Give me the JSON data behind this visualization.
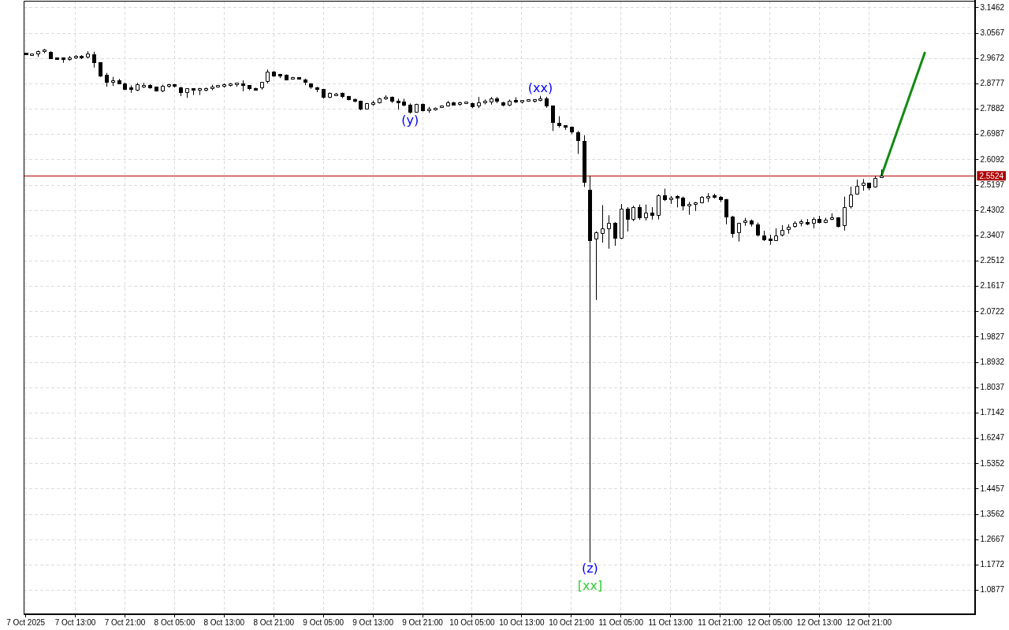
{
  "chart_data": {
    "type": "candlestick",
    "series": [
      {
        "type": "candlestick",
        "color": "#000000",
        "x": [
          "2025-10-07T05:00",
          "2025-10-07T06:00",
          "2025-10-07T07:00",
          "2025-10-07T08:00",
          "2025-10-07T09:00",
          "2025-10-07T10:00",
          "2025-10-07T11:00",
          "2025-10-07T12:00",
          "2025-10-07T13:00",
          "2025-10-07T14:00",
          "2025-10-07T15:00",
          "2025-10-07T16:00",
          "2025-10-07T17:00",
          "2025-10-07T18:00",
          "2025-10-07T19:00",
          "2025-10-07T20:00",
          "2025-10-07T21:00",
          "2025-10-07T22:00",
          "2025-10-07T23:00",
          "2025-10-08T00:00",
          "2025-10-08T01:00",
          "2025-10-08T02:00",
          "2025-10-08T03:00",
          "2025-10-08T04:00",
          "2025-10-08T05:00",
          "2025-10-08T06:00",
          "2025-10-08T07:00",
          "2025-10-08T08:00",
          "2025-10-08T09:00",
          "2025-10-08T10:00",
          "2025-10-08T11:00",
          "2025-10-08T12:00",
          "2025-10-08T13:00",
          "2025-10-08T14:00",
          "2025-10-08T15:00",
          "2025-10-08T16:00",
          "2025-10-08T17:00",
          "2025-10-08T18:00",
          "2025-10-08T19:00",
          "2025-10-08T20:00",
          "2025-10-08T21:00",
          "2025-10-08T22:00",
          "2025-10-08T23:00",
          "2025-10-09T00:00",
          "2025-10-09T01:00",
          "2025-10-09T02:00",
          "2025-10-09T03:00",
          "2025-10-09T04:00",
          "2025-10-09T05:00",
          "2025-10-09T06:00",
          "2025-10-09T07:00",
          "2025-10-09T08:00",
          "2025-10-09T09:00",
          "2025-10-09T10:00",
          "2025-10-09T11:00",
          "2025-10-09T12:00",
          "2025-10-09T13:00",
          "2025-10-09T14:00",
          "2025-10-09T15:00",
          "2025-10-09T16:00",
          "2025-10-09T17:00",
          "2025-10-09T18:00",
          "2025-10-09T19:00",
          "2025-10-09T20:00",
          "2025-10-09T21:00",
          "2025-10-09T22:00",
          "2025-10-09T23:00",
          "2025-10-10T00:00",
          "2025-10-10T01:00",
          "2025-10-10T02:00",
          "2025-10-10T03:00",
          "2025-10-10T04:00",
          "2025-10-10T05:00",
          "2025-10-10T06:00",
          "2025-10-10T07:00",
          "2025-10-10T08:00",
          "2025-10-10T09:00",
          "2025-10-10T10:00",
          "2025-10-10T11:00",
          "2025-10-10T12:00",
          "2025-10-10T13:00",
          "2025-10-10T14:00",
          "2025-10-10T15:00",
          "2025-10-10T16:00",
          "2025-10-10T17:00",
          "2025-10-10T18:00",
          "2025-10-10T19:00",
          "2025-10-10T20:00",
          "2025-10-10T21:00",
          "2025-10-10T22:00",
          "2025-10-10T23:00",
          "2025-10-11T00:00",
          "2025-10-11T01:00",
          "2025-10-11T02:00",
          "2025-10-11T03:00",
          "2025-10-11T04:00",
          "2025-10-11T05:00",
          "2025-10-11T06:00",
          "2025-10-11T07:00",
          "2025-10-11T08:00",
          "2025-10-11T09:00",
          "2025-10-11T10:00",
          "2025-10-11T11:00",
          "2025-10-11T12:00",
          "2025-10-11T13:00",
          "2025-10-11T14:00",
          "2025-10-11T15:00",
          "2025-10-11T16:00",
          "2025-10-11T17:00",
          "2025-10-11T18:00",
          "2025-10-11T19:00",
          "2025-10-11T20:00",
          "2025-10-11T21:00",
          "2025-10-11T22:00",
          "2025-10-11T23:00",
          "2025-10-12T00:00",
          "2025-10-12T01:00",
          "2025-10-12T02:00",
          "2025-10-12T03:00",
          "2025-10-12T04:00",
          "2025-10-12T05:00",
          "2025-10-12T06:00",
          "2025-10-12T07:00",
          "2025-10-12T08:00",
          "2025-10-12T09:00",
          "2025-10-12T10:00",
          "2025-10-12T11:00",
          "2025-10-12T12:00",
          "2025-10-12T13:00",
          "2025-10-12T14:00",
          "2025-10-12T15:00",
          "2025-10-12T16:00",
          "2025-10-12T17:00",
          "2025-10-12T18:00",
          "2025-10-12T19:00",
          "2025-10-12T20:00",
          "2025-10-12T21:00",
          "2025-10-12T22:00",
          "2025-10-12T23:00"
        ],
        "ohlc": [
          [
            2.984,
            2.987,
            2.981,
            2.984
          ],
          [
            2.981,
            2.984,
            2.978,
            2.982
          ],
          [
            2.983,
            2.995,
            2.973,
            2.992
          ],
          [
            2.993,
            3.001,
            2.986,
            2.994
          ],
          [
            2.991,
            2.993,
            2.965,
            2.966
          ],
          [
            2.968,
            2.971,
            2.962,
            2.967
          ],
          [
            2.97,
            2.971,
            2.952,
            2.963
          ],
          [
            2.963,
            2.976,
            2.959,
            2.971
          ],
          [
            2.968,
            2.979,
            2.965,
            2.976
          ],
          [
            2.976,
            2.979,
            2.965,
            2.968
          ],
          [
            2.97,
            2.993,
            2.967,
            2.985
          ],
          [
            2.983,
            2.991,
            2.935,
            2.951
          ],
          [
            2.953,
            2.953,
            2.902,
            2.905
          ],
          [
            2.909,
            2.916,
            2.867,
            2.882
          ],
          [
            2.883,
            2.902,
            2.87,
            2.889
          ],
          [
            2.891,
            2.895,
            2.876,
            2.877
          ],
          [
            2.879,
            2.882,
            2.856,
            2.857
          ],
          [
            2.863,
            2.872,
            2.846,
            2.856
          ],
          [
            2.853,
            2.881,
            2.852,
            2.876
          ],
          [
            2.865,
            2.881,
            2.863,
            2.873
          ],
          [
            2.873,
            2.877,
            2.86,
            2.862
          ],
          [
            2.867,
            2.868,
            2.85,
            2.851
          ],
          [
            2.851,
            2.874,
            2.848,
            2.87
          ],
          [
            2.871,
            2.877,
            2.864,
            2.872
          ],
          [
            2.872,
            2.877,
            2.864,
            2.87
          ],
          [
            2.865,
            2.867,
            2.834,
            2.846
          ],
          [
            2.846,
            2.861,
            2.828,
            2.861
          ],
          [
            2.86,
            2.86,
            2.838,
            2.854
          ],
          [
            2.855,
            2.863,
            2.838,
            2.862
          ],
          [
            2.857,
            2.864,
            2.851,
            2.86
          ],
          [
            2.86,
            2.874,
            2.855,
            2.869
          ],
          [
            2.867,
            2.872,
            2.864,
            2.869
          ],
          [
            2.868,
            2.879,
            2.864,
            2.877
          ],
          [
            2.875,
            2.88,
            2.868,
            2.876
          ],
          [
            2.876,
            2.881,
            2.867,
            2.877
          ],
          [
            2.877,
            2.89,
            2.851,
            2.874
          ],
          [
            2.872,
            2.872,
            2.855,
            2.859
          ],
          [
            2.861,
            2.864,
            2.855,
            2.857
          ],
          [
            2.862,
            2.883,
            2.857,
            2.883
          ],
          [
            2.883,
            2.928,
            2.879,
            2.921
          ],
          [
            2.92,
            2.923,
            2.902,
            2.904
          ],
          [
            2.91,
            2.913,
            2.898,
            2.904
          ],
          [
            2.909,
            2.911,
            2.891,
            2.891
          ],
          [
            2.896,
            2.902,
            2.893,
            2.897
          ],
          [
            2.896,
            2.9,
            2.895,
            2.896
          ],
          [
            2.894,
            2.896,
            2.873,
            2.881
          ],
          [
            2.878,
            2.88,
            2.86,
            2.865
          ],
          [
            2.866,
            2.867,
            2.848,
            2.857
          ],
          [
            2.859,
            2.86,
            2.825,
            2.828
          ],
          [
            2.829,
            2.847,
            2.827,
            2.844
          ],
          [
            2.839,
            2.845,
            2.834,
            2.84
          ],
          [
            2.845,
            2.847,
            2.827,
            2.831
          ],
          [
            2.834,
            2.835,
            2.819,
            2.821
          ],
          [
            2.823,
            2.826,
            2.812,
            2.816
          ],
          [
            2.817,
            2.818,
            2.784,
            2.786
          ],
          [
            2.788,
            2.81,
            2.787,
            2.809
          ],
          [
            2.808,
            2.818,
            2.8,
            2.809
          ],
          [
            2.809,
            2.828,
            2.808,
            2.825
          ],
          [
            2.823,
            2.837,
            2.821,
            2.831
          ],
          [
            2.831,
            2.833,
            2.81,
            2.814
          ],
          [
            2.817,
            2.825,
            2.786,
            2.811
          ],
          [
            2.814,
            2.825,
            2.798,
            2.801
          ],
          [
            2.805,
            2.808,
            2.772,
            2.775
          ],
          [
            2.777,
            2.807,
            2.776,
            2.806
          ],
          [
            2.806,
            2.808,
            2.78,
            2.781
          ],
          [
            2.781,
            2.796,
            2.775,
            2.789
          ],
          [
            2.788,
            2.794,
            2.783,
            2.79
          ],
          [
            2.795,
            2.801,
            2.792,
            2.797
          ],
          [
            2.797,
            2.817,
            2.797,
            2.813
          ],
          [
            2.813,
            2.814,
            2.801,
            2.802
          ],
          [
            2.803,
            2.814,
            2.8,
            2.811
          ],
          [
            2.809,
            2.814,
            2.806,
            2.81
          ],
          [
            2.81,
            2.811,
            2.792,
            2.795
          ],
          [
            2.797,
            2.831,
            2.792,
            2.813
          ],
          [
            2.811,
            2.822,
            2.805,
            2.815
          ],
          [
            2.812,
            2.831,
            2.804,
            2.825
          ],
          [
            2.826,
            2.831,
            2.809,
            2.814
          ],
          [
            2.813,
            2.814,
            2.798,
            2.801
          ],
          [
            2.8,
            2.822,
            2.799,
            2.818
          ],
          [
            2.819,
            2.83,
            2.81,
            2.812
          ],
          [
            2.814,
            2.82,
            2.808,
            2.819
          ],
          [
            2.818,
            2.821,
            2.816,
            2.819
          ],
          [
            2.818,
            2.822,
            2.811,
            2.82
          ],
          [
            2.819,
            2.835,
            2.816,
            2.825
          ],
          [
            2.825,
            2.832,
            2.793,
            2.799
          ],
          [
            2.8,
            2.8,
            2.711,
            2.739
          ],
          [
            2.741,
            2.763,
            2.723,
            2.728
          ],
          [
            2.73,
            2.731,
            2.715,
            2.723
          ],
          [
            2.725,
            2.727,
            2.7,
            2.705
          ],
          [
            2.707,
            2.711,
            2.63,
            2.676
          ],
          [
            2.677,
            2.696,
            2.513,
            2.527
          ],
          [
            2.504,
            2.553,
            1.186,
            2.323
          ],
          [
            2.327,
            2.356,
            2.114,
            2.353
          ],
          [
            2.348,
            2.449,
            2.316,
            2.367
          ],
          [
            2.365,
            2.413,
            2.295,
            2.386
          ],
          [
            2.386,
            2.389,
            2.305,
            2.331
          ],
          [
            2.331,
            2.453,
            2.329,
            2.436
          ],
          [
            2.436,
            2.442,
            2.356,
            2.397
          ],
          [
            2.397,
            2.447,
            2.392,
            2.442
          ],
          [
            2.442,
            2.451,
            2.397,
            2.402
          ],
          [
            2.402,
            2.451,
            2.395,
            2.423
          ],
          [
            2.423,
            2.442,
            2.398,
            2.41
          ],
          [
            2.411,
            2.487,
            2.398,
            2.484
          ],
          [
            2.483,
            2.507,
            2.463,
            2.467
          ],
          [
            2.467,
            2.481,
            2.453,
            2.476
          ],
          [
            2.48,
            2.484,
            2.441,
            2.476
          ],
          [
            2.476,
            2.479,
            2.43,
            2.444
          ],
          [
            2.444,
            2.46,
            2.415,
            2.451
          ],
          [
            2.449,
            2.46,
            2.428,
            2.458
          ],
          [
            2.457,
            2.481,
            2.455,
            2.479
          ],
          [
            2.476,
            2.491,
            2.46,
            2.479
          ],
          [
            2.479,
            2.489,
            2.472,
            2.478
          ],
          [
            2.479,
            2.481,
            2.46,
            2.467
          ],
          [
            2.47,
            2.471,
            2.381,
            2.407
          ],
          [
            2.409,
            2.411,
            2.334,
            2.348
          ],
          [
            2.351,
            2.386,
            2.32,
            2.386
          ],
          [
            2.385,
            2.404,
            2.376,
            2.395
          ],
          [
            2.395,
            2.398,
            2.373,
            2.38
          ],
          [
            2.381,
            2.387,
            2.338,
            2.341
          ],
          [
            2.342,
            2.358,
            2.322,
            2.325
          ],
          [
            2.328,
            2.344,
            2.309,
            2.324
          ],
          [
            2.323,
            2.367,
            2.322,
            2.341
          ],
          [
            2.341,
            2.378,
            2.338,
            2.361
          ],
          [
            2.361,
            2.381,
            2.348,
            2.372
          ],
          [
            2.371,
            2.392,
            2.369,
            2.387
          ],
          [
            2.388,
            2.398,
            2.374,
            2.389
          ],
          [
            2.389,
            2.4,
            2.378,
            2.381
          ],
          [
            2.383,
            2.406,
            2.367,
            2.4
          ],
          [
            2.4,
            2.411,
            2.384,
            2.387
          ],
          [
            2.387,
            2.404,
            2.385,
            2.396
          ],
          [
            2.396,
            2.42,
            2.396,
            2.406
          ],
          [
            2.406,
            2.406,
            2.37,
            2.373
          ],
          [
            2.374,
            2.479,
            2.359,
            2.441
          ],
          [
            2.441,
            2.514,
            2.437,
            2.486
          ],
          [
            2.486,
            2.539,
            2.486,
            2.516
          ],
          [
            2.518,
            2.541,
            2.5,
            2.528
          ],
          [
            2.528,
            2.528,
            2.502,
            2.51
          ],
          [
            2.511,
            2.551,
            2.511,
            2.546
          ],
          [
            2.547,
            2.575,
            2.545,
            2.5524
          ]
        ],
        "colors": [
          "#000000",
          "#ffffff",
          "#ffffff",
          "#ffffff",
          "#000000",
          "#000000",
          "#000000",
          "#ffffff",
          "#ffffff",
          "#000000",
          "#ffffff",
          "#000000",
          "#000000",
          "#000000",
          "#ffffff",
          "#000000",
          "#000000",
          "#000000",
          "#ffffff",
          "#ffffff",
          "#000000",
          "#000000",
          "#ffffff",
          "#ffffff",
          "#000000",
          "#000000",
          "#ffffff",
          "#000000",
          "#ffffff",
          "#ffffff",
          "#ffffff",
          "#ffffff",
          "#ffffff",
          "#ffffff",
          "#ffffff",
          "#000000",
          "#000000",
          "#000000",
          "#ffffff",
          "#ffffff",
          "#000000",
          "#000000",
          "#000000",
          "#ffffff",
          "#000000",
          "#000000",
          "#000000",
          "#000000",
          "#000000",
          "#ffffff",
          "#ffffff",
          "#000000",
          "#000000",
          "#000000",
          "#000000",
          "#ffffff",
          "#ffffff",
          "#ffffff",
          "#ffffff",
          "#000000",
          "#000000",
          "#000000",
          "#000000",
          "#ffffff",
          "#000000",
          "#ffffff",
          "#ffffff",
          "#ffffff",
          "#ffffff",
          "#000000",
          "#ffffff",
          "#ffffff",
          "#000000",
          "#ffffff",
          "#ffffff",
          "#ffffff",
          "#000000",
          "#000000",
          "#ffffff",
          "#000000",
          "#ffffff",
          "#ffffff",
          "#ffffff",
          "#ffffff",
          "#000000",
          "#000000",
          "#000000",
          "#000000",
          "#000000",
          "#000000",
          "#000000",
          "#000000",
          "#ffffff",
          "#ffffff",
          "#ffffff",
          "#000000",
          "#ffffff",
          "#000000",
          "#ffffff",
          "#000000",
          "#ffffff",
          "#000000",
          "#ffffff",
          "#000000",
          "#ffffff",
          "#000000",
          "#000000",
          "#ffffff",
          "#ffffff",
          "#ffffff",
          "#ffffff",
          "#000000",
          "#000000",
          "#000000",
          "#000000",
          "#ffffff",
          "#ffffff",
          "#000000",
          "#000000",
          "#000000",
          "#000000",
          "#ffffff",
          "#ffffff",
          "#ffffff",
          "#ffffff",
          "#ffffff",
          "#000000",
          "#ffffff",
          "#000000",
          "#ffffff",
          "#ffffff",
          "#000000",
          "#ffffff",
          "#ffffff",
          "#ffffff",
          "#ffffff",
          "#000000",
          "#ffffff",
          "#ffffff"
        ]
      },
      {
        "type": "line",
        "color": "#138a13",
        "x": [
          "2025-10-12T23:00",
          "2025-10-13T06:00"
        ],
        "values": [
          2.552,
          2.987
        ]
      }
    ],
    "xlim": [
      "2025-10-07T04:40",
      "2025-10-13T14:10"
    ],
    "xticks": [
      {
        "value": "2025-10-07T05:00",
        "label": "7 Oct 2025"
      },
      {
        "value": "2025-10-07T13:00",
        "label": "7 Oct 13:00"
      },
      {
        "value": "2025-10-07T21:00",
        "label": "7 Oct 21:00"
      },
      {
        "value": "2025-10-08T05:00",
        "label": "8 Oct 05:00"
      },
      {
        "value": "2025-10-08T13:00",
        "label": "8 Oct 13:00"
      },
      {
        "value": "2025-10-08T21:00",
        "label": "8 Oct 21:00"
      },
      {
        "value": "2025-10-09T05:00",
        "label": "9 Oct 05:00"
      },
      {
        "value": "2025-10-09T13:00",
        "label": "9 Oct 13:00"
      },
      {
        "value": "2025-10-09T21:00",
        "label": "9 Oct 21:00"
      },
      {
        "value": "2025-10-10T05:00",
        "label": "10 Oct 05:00"
      },
      {
        "value": "2025-10-10T13:00",
        "label": "10 Oct 13:00"
      },
      {
        "value": "2025-10-10T21:00",
        "label": "10 Oct 21:00"
      },
      {
        "value": "2025-10-11T05:00",
        "label": "11 Oct 05:00"
      },
      {
        "value": "2025-10-11T13:00",
        "label": "11 Oct 13:00"
      },
      {
        "value": "2025-10-11T21:00",
        "label": "11 Oct 21:00"
      },
      {
        "value": "2025-10-12T05:00",
        "label": "12 Oct 05:00"
      },
      {
        "value": "2025-10-12T13:00",
        "label": "12 Oct 13:00"
      },
      {
        "value": "2025-10-12T21:00",
        "label": "12 Oct 21:00"
      }
    ],
    "ylim": [
      1.003,
      3.171
    ],
    "yticks": [
      1.0877,
      1.1772,
      1.2667,
      1.3562,
      1.4457,
      1.5352,
      1.6247,
      1.7142,
      1.8037,
      1.8932,
      1.9827,
      2.0722,
      2.1617,
      2.2512,
      2.3407,
      2.4302,
      2.5197,
      2.6092,
      2.6987,
      2.7882,
      2.8777,
      2.9672,
      3.0567,
      3.1462
    ],
    "grid": true,
    "ref_lines": [
      {
        "axis": "y",
        "value": 2.5524,
        "label": "2.5524",
        "color": "#b00000"
      }
    ],
    "annotations": [
      {
        "text": "(xx)",
        "x": "2025-10-10T16:00",
        "y": 2.835
      },
      {
        "text": "(y)",
        "x": "2025-10-09T19:00",
        "y": 2.772
      },
      {
        "text": "(z)",
        "x": "2025-10-11T00:00",
        "y": 1.186
      },
      {
        "text": "[xx]",
        "x": "2025-10-11T00:00",
        "y": 1.186
      }
    ]
  }
}
